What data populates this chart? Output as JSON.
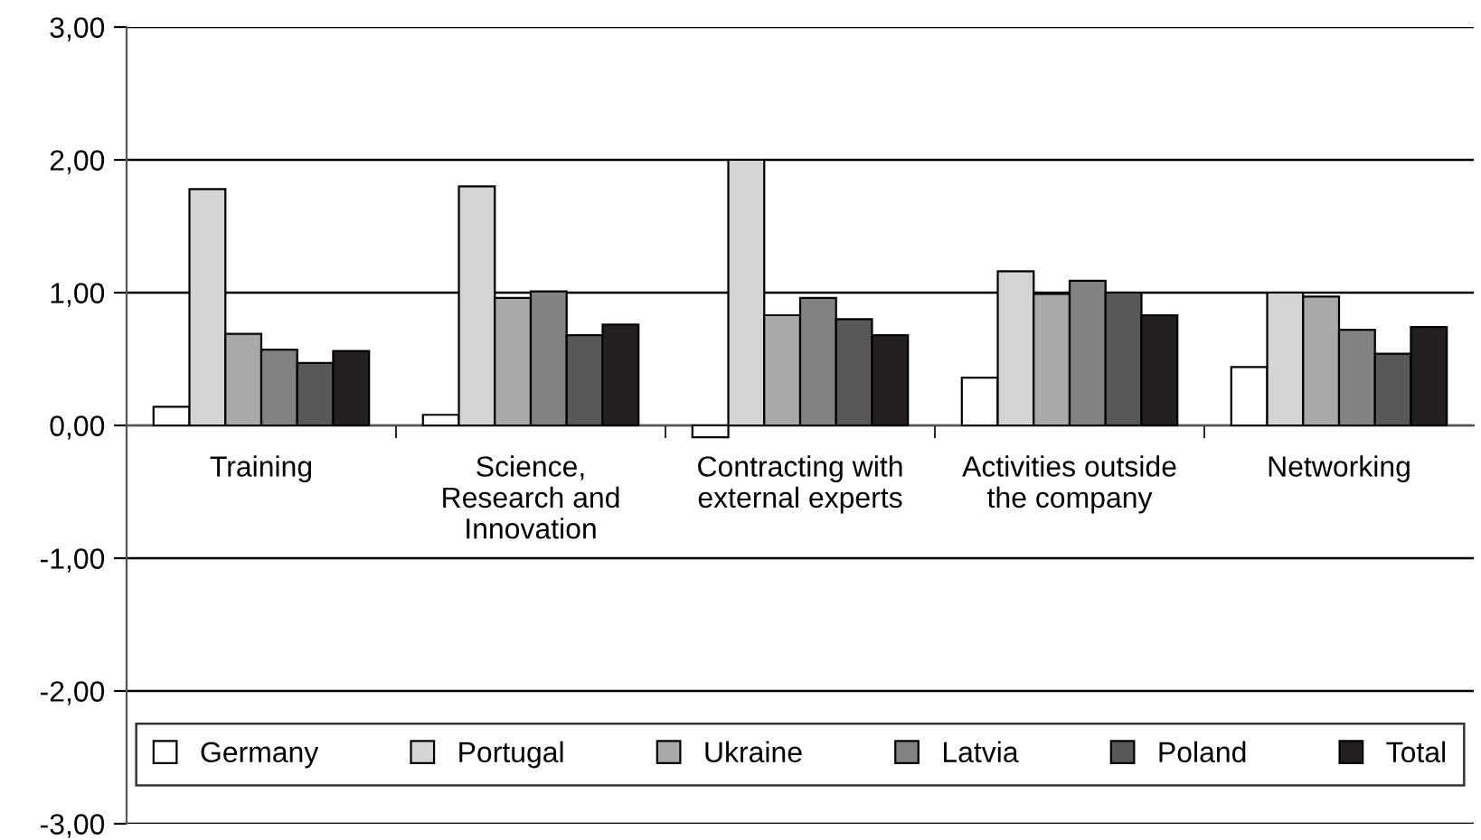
{
  "chart_data": {
    "type": "bar",
    "categories": [
      "Training",
      "Science,\nResearch and\nInnovation",
      "Contracting with\nexternal experts",
      "Activities outside\nthe company",
      "Networking"
    ],
    "series": [
      {
        "name": "Germany",
        "color": "#ffffff",
        "values": [
          0.14,
          0.08,
          -0.09,
          0.36,
          0.44
        ]
      },
      {
        "name": "Portugal",
        "color": "#d4d4d4",
        "values": [
          1.78,
          1.8,
          2.0,
          1.16,
          1.0
        ]
      },
      {
        "name": "Ukraine",
        "color": "#a9a9ab",
        "values": [
          0.69,
          0.96,
          0.83,
          0.99,
          0.97
        ]
      },
      {
        "name": "Latvia",
        "color": "#828285",
        "values": [
          0.57,
          1.01,
          0.96,
          1.09,
          0.72
        ]
      },
      {
        "name": "Poland",
        "color": "#58585a",
        "values": [
          0.47,
          0.68,
          0.8,
          1.0,
          0.54
        ]
      },
      {
        "name": "Total",
        "color": "#231f20",
        "values": [
          0.56,
          0.76,
          0.68,
          0.83,
          0.74
        ]
      }
    ],
    "ylim": [
      -3,
      3
    ],
    "yticks": [
      {
        "value": -3,
        "label": "-3,00"
      },
      {
        "value": -2,
        "label": "-2,00"
      },
      {
        "value": -1,
        "label": "-1,00"
      },
      {
        "value": 0,
        "label": "0,00"
      },
      {
        "value": 1,
        "label": "1,00"
      },
      {
        "value": 2,
        "label": "2,00"
      },
      {
        "value": 3,
        "label": "3,00"
      }
    ],
    "grid": "y",
    "legend": "bottom"
  }
}
